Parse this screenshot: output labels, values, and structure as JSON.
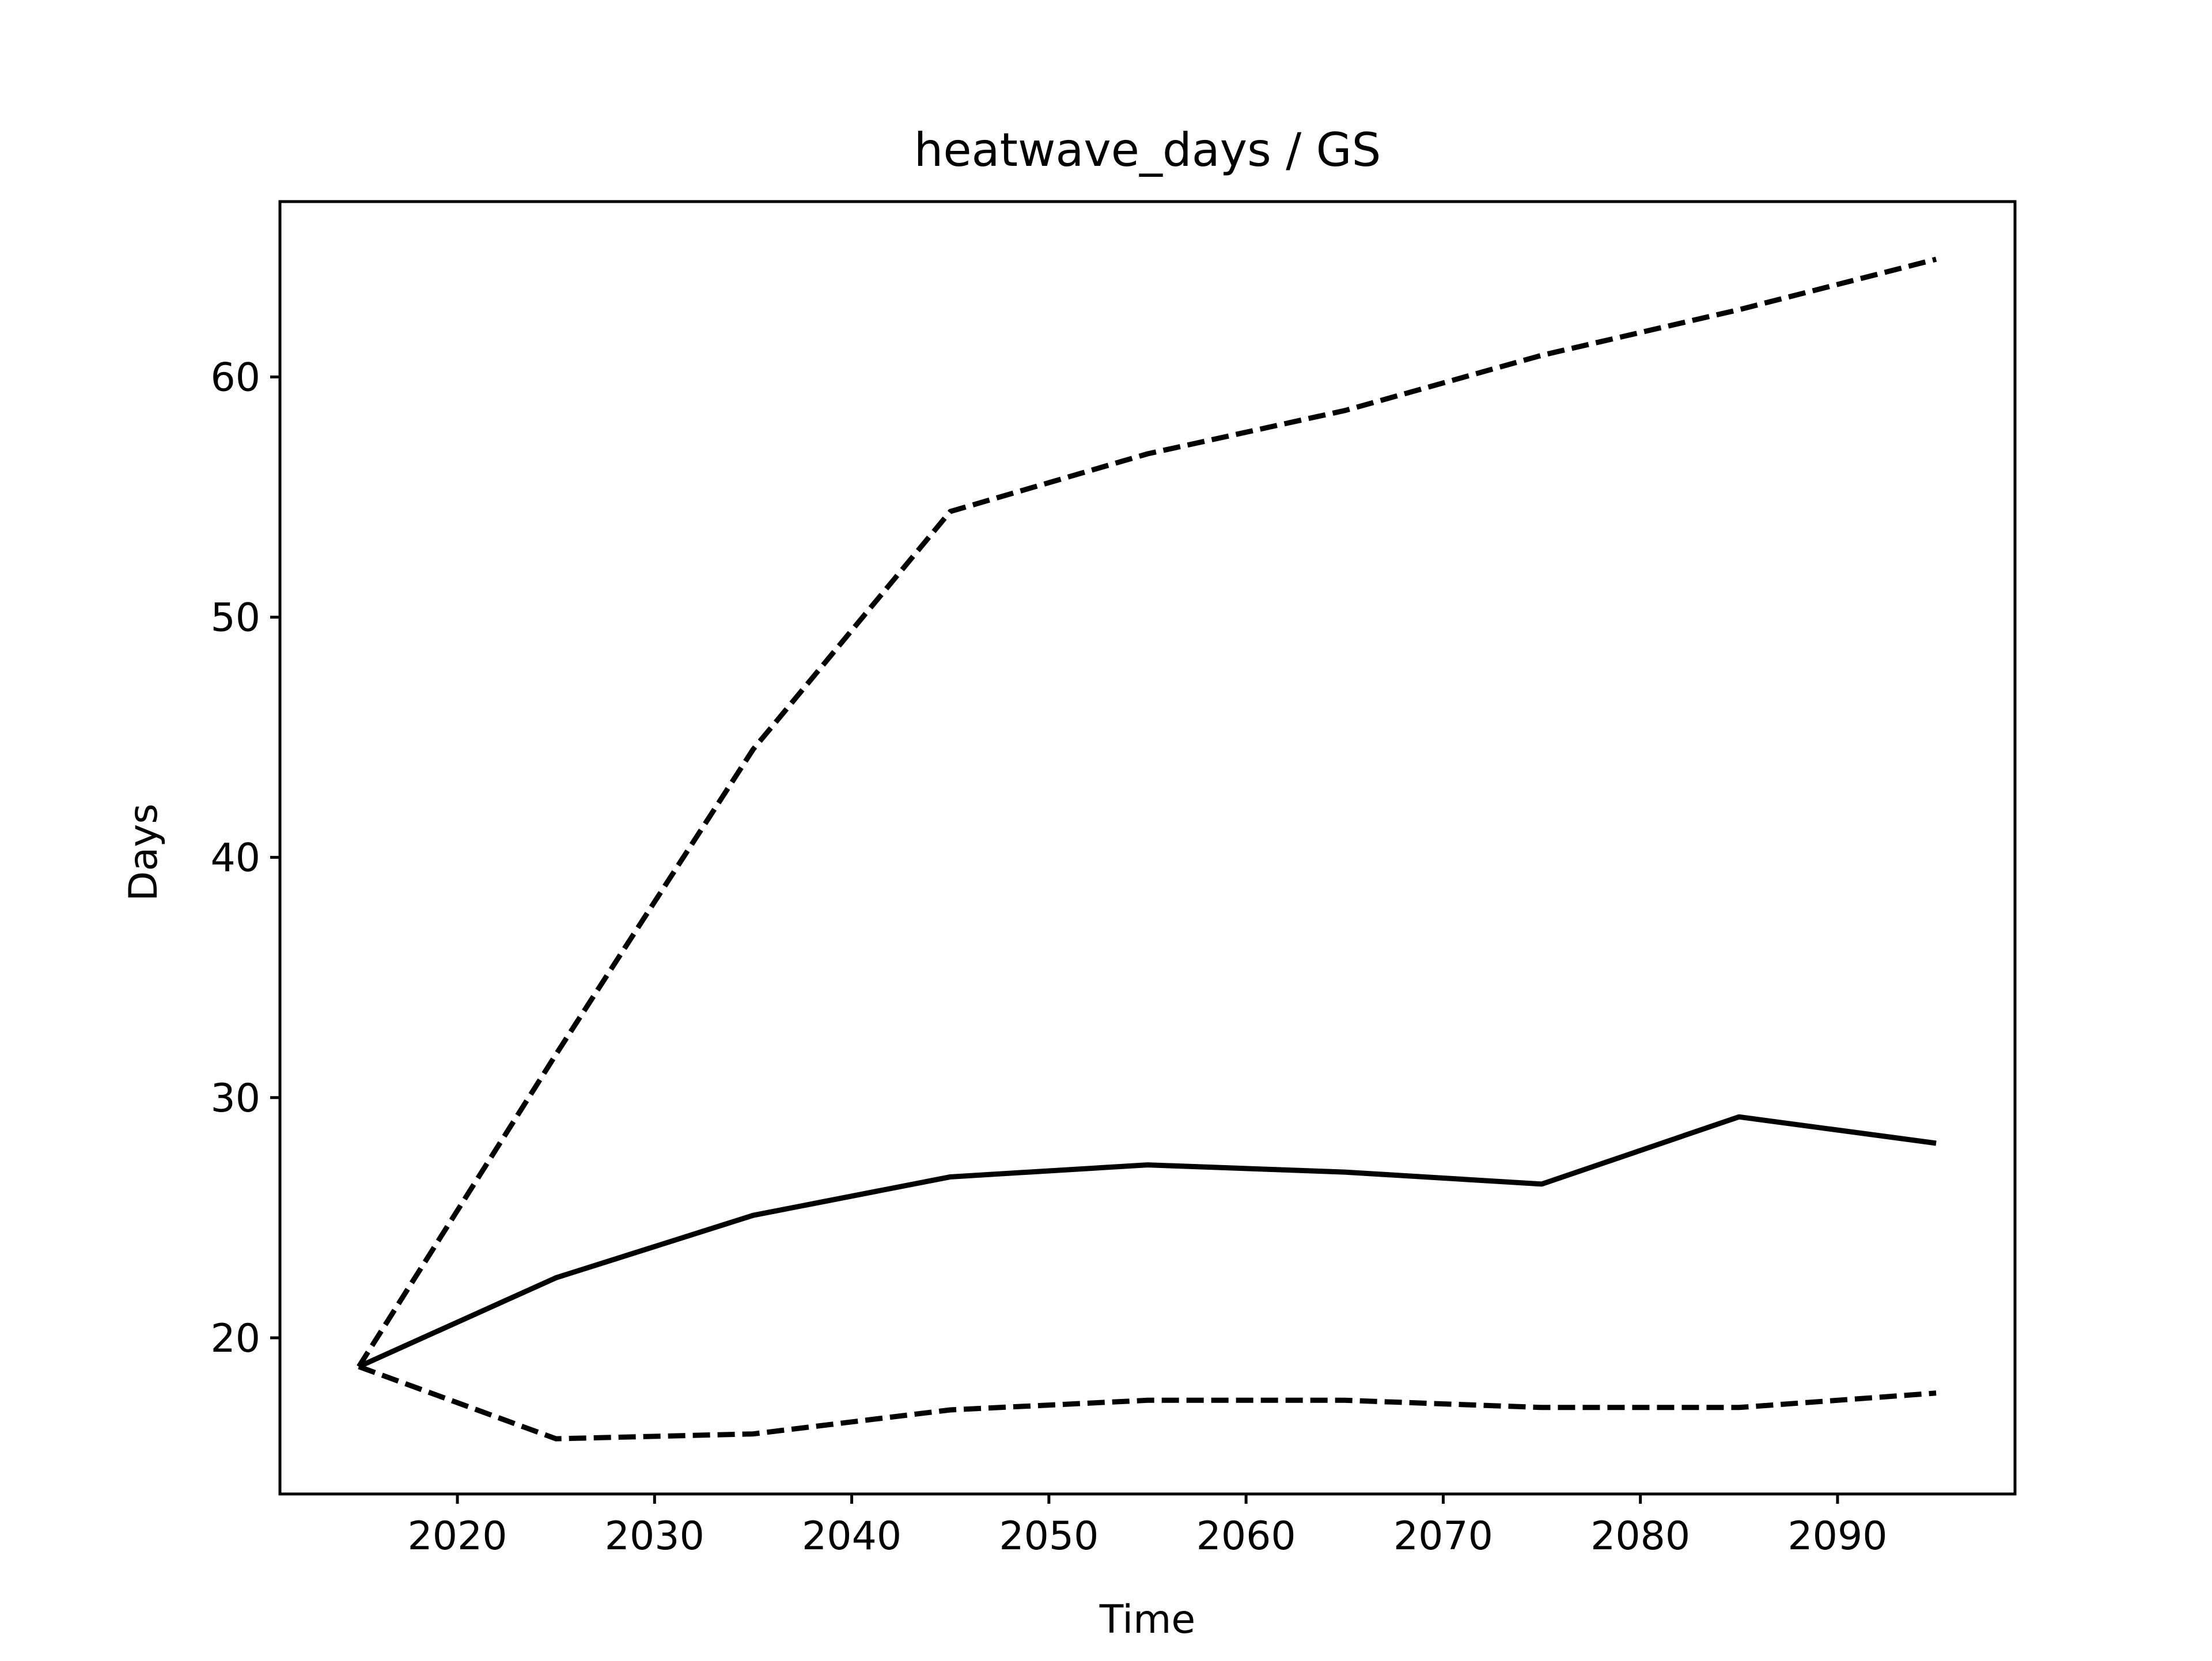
{
  "chart_data": {
    "type": "line",
    "title": "heatwave_days / GS",
    "xlabel": "Time",
    "ylabel": "Days",
    "xlim": [
      2011,
      2099
    ],
    "ylim": [
      13.5,
      67.3
    ],
    "xticks": [
      2020,
      2030,
      2040,
      2050,
      2060,
      2070,
      2080,
      2090
    ],
    "yticks": [
      20,
      30,
      40,
      50,
      60
    ],
    "grid": false,
    "legend": "none",
    "x": [
      2015,
      2025,
      2035,
      2045,
      2055,
      2065,
      2075,
      2085,
      2095
    ],
    "series": [
      {
        "style": "solid",
        "color": "#000000",
        "values": [
          18.8,
          22.5,
          25.1,
          26.7,
          27.2,
          26.9,
          26.4,
          29.2,
          28.1
        ]
      },
      {
        "style": "dashed",
        "color": "#000000",
        "values": [
          18.8,
          31.8,
          44.5,
          54.4,
          56.8,
          58.6,
          60.9,
          62.8,
          64.9
        ]
      },
      {
        "style": "dashed",
        "color": "#000000",
        "values": [
          18.8,
          15.8,
          16.0,
          17.0,
          17.4,
          17.4,
          17.1,
          17.1,
          17.7
        ]
      }
    ]
  }
}
